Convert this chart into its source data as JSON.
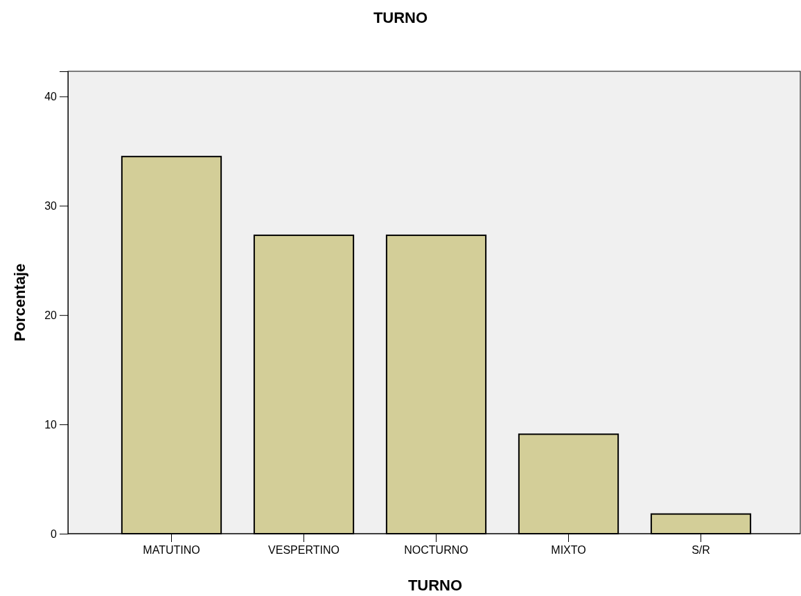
{
  "chart_data": {
    "type": "bar",
    "title": "TURNO",
    "xlabel": "TURNO",
    "ylabel": "Porcentaje",
    "categories": [
      "MATUTINO",
      "VESPERTINO",
      "NOCTURNO",
      "MIXTO",
      "S/R"
    ],
    "values": [
      34.5,
      27.3,
      27.3,
      9.1,
      1.8
    ],
    "color": "#d3ce98",
    "ylim": [
      0,
      42.3
    ],
    "yticks": [
      0,
      10,
      20,
      30,
      40
    ],
    "grid": false
  }
}
